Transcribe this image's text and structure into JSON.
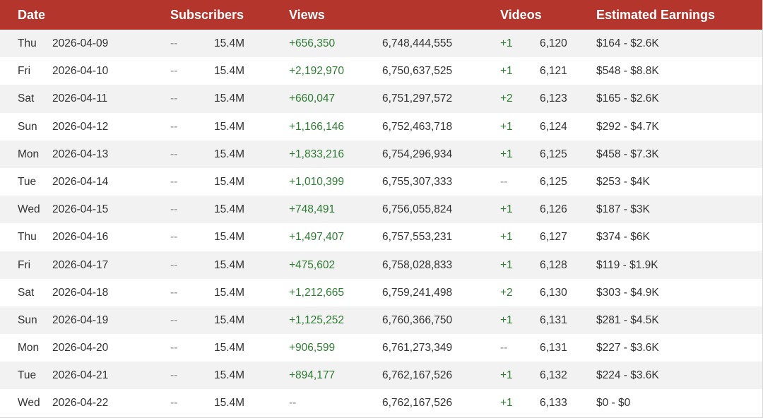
{
  "header": {
    "date": "Date",
    "subscribers": "Subscribers",
    "views": "Views",
    "videos": "Videos",
    "earnings": "Estimated Earnings"
  },
  "colors": {
    "header_bg": "#b3352b",
    "positive_change": "#2e7d32",
    "row_stripe": "#f2f2f2"
  },
  "rows": [
    {
      "day": "Thu",
      "date": "2026-04-09",
      "sub_change": "--",
      "subs": "15.4M",
      "view_change": "+656,350",
      "views": "6,748,444,555",
      "video_change": "+1",
      "videos": "6,120",
      "earnings": "$164 - $2.6K"
    },
    {
      "day": "Fri",
      "date": "2026-04-10",
      "sub_change": "--",
      "subs": "15.4M",
      "view_change": "+2,192,970",
      "views": "6,750,637,525",
      "video_change": "+1",
      "videos": "6,121",
      "earnings": "$548 - $8.8K"
    },
    {
      "day": "Sat",
      "date": "2026-04-11",
      "sub_change": "--",
      "subs": "15.4M",
      "view_change": "+660,047",
      "views": "6,751,297,572",
      "video_change": "+2",
      "videos": "6,123",
      "earnings": "$165 - $2.6K"
    },
    {
      "day": "Sun",
      "date": "2026-04-12",
      "sub_change": "--",
      "subs": "15.4M",
      "view_change": "+1,166,146",
      "views": "6,752,463,718",
      "video_change": "+1",
      "videos": "6,124",
      "earnings": "$292 - $4.7K"
    },
    {
      "day": "Mon",
      "date": "2026-04-13",
      "sub_change": "--",
      "subs": "15.4M",
      "view_change": "+1,833,216",
      "views": "6,754,296,934",
      "video_change": "+1",
      "videos": "6,125",
      "earnings": "$458 - $7.3K"
    },
    {
      "day": "Tue",
      "date": "2026-04-14",
      "sub_change": "--",
      "subs": "15.4M",
      "view_change": "+1,010,399",
      "views": "6,755,307,333",
      "video_change": "--",
      "videos": "6,125",
      "earnings": "$253 - $4K"
    },
    {
      "day": "Wed",
      "date": "2026-04-15",
      "sub_change": "--",
      "subs": "15.4M",
      "view_change": "+748,491",
      "views": "6,756,055,824",
      "video_change": "+1",
      "videos": "6,126",
      "earnings": "$187 - $3K"
    },
    {
      "day": "Thu",
      "date": "2026-04-16",
      "sub_change": "--",
      "subs": "15.4M",
      "view_change": "+1,497,407",
      "views": "6,757,553,231",
      "video_change": "+1",
      "videos": "6,127",
      "earnings": "$374 - $6K"
    },
    {
      "day": "Fri",
      "date": "2026-04-17",
      "sub_change": "--",
      "subs": "15.4M",
      "view_change": "+475,602",
      "views": "6,758,028,833",
      "video_change": "+1",
      "videos": "6,128",
      "earnings": "$119 - $1.9K"
    },
    {
      "day": "Sat",
      "date": "2026-04-18",
      "sub_change": "--",
      "subs": "15.4M",
      "view_change": "+1,212,665",
      "views": "6,759,241,498",
      "video_change": "+2",
      "videos": "6,130",
      "earnings": "$303 - $4.9K"
    },
    {
      "day": "Sun",
      "date": "2026-04-19",
      "sub_change": "--",
      "subs": "15.4M",
      "view_change": "+1,125,252",
      "views": "6,760,366,750",
      "video_change": "+1",
      "videos": "6,131",
      "earnings": "$281 - $4.5K"
    },
    {
      "day": "Mon",
      "date": "2026-04-20",
      "sub_change": "--",
      "subs": "15.4M",
      "view_change": "+906,599",
      "views": "6,761,273,349",
      "video_change": "--",
      "videos": "6,131",
      "earnings": "$227 - $3.6K"
    },
    {
      "day": "Tue",
      "date": "2026-04-21",
      "sub_change": "--",
      "subs": "15.4M",
      "view_change": "+894,177",
      "views": "6,762,167,526",
      "video_change": "+1",
      "videos": "6,132",
      "earnings": "$224 - $3.6K"
    },
    {
      "day": "Wed",
      "date": "2026-04-22",
      "sub_change": "--",
      "subs": "15.4M",
      "view_change": "--",
      "views": "6,762,167,526",
      "video_change": "+1",
      "videos": "6,133",
      "earnings": "$0 - $0"
    }
  ]
}
